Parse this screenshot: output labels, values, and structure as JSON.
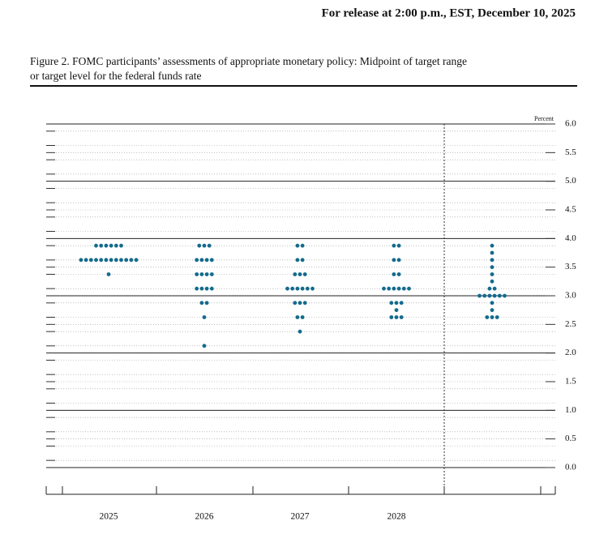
{
  "release": "For release at 2:00 p.m., EST, December 10, 2025",
  "chart_data": {
    "type": "dotplot",
    "title": [
      "Figure 2. FOMC participants’ assessments of appropriate monetary policy: Midpoint of target range",
      "or target level for the federal funds rate"
    ],
    "y_label": "Percent",
    "color": "#136b8c",
    "ylim": [
      0,
      6
    ],
    "yticks": [
      {
        "value": 0,
        "label": "0.0"
      },
      0.5,
      {
        "value": 1,
        "label": "1.0"
      },
      1.5,
      {
        "value": 2,
        "label": "2.0"
      },
      2.5,
      {
        "value": 3,
        "label": "3.0"
      },
      3.5,
      {
        "value": 4,
        "label": "4.0"
      },
      4.5,
      {
        "value": 5,
        "label": "5.0"
      },
      5.5,
      {
        "value": 6,
        "label": "6.0"
      }
    ],
    "categories": [
      "2025",
      "2026",
      "2027",
      "2028",
      null
    ],
    "points": [
      [
        {
          "value": 3.875,
          "count": 6
        },
        {
          "value": 3.625,
          "count": 12
        },
        {
          "value": 3.375,
          "count": 1
        }
      ],
      [
        {
          "value": 3.875,
          "count": 3
        },
        {
          "value": 3.625,
          "count": 4
        },
        {
          "value": 3.375,
          "count": 4
        },
        {
          "value": 3.125,
          "count": 4
        },
        {
          "value": 2.875,
          "count": 2
        },
        {
          "value": 2.625,
          "count": 1
        },
        {
          "value": 2.125,
          "count": 1
        }
      ],
      [
        {
          "value": 3.875,
          "count": 2
        },
        {
          "value": 3.625,
          "count": 2
        },
        {
          "value": 3.375,
          "count": 3
        },
        {
          "value": 3.125,
          "count": 6
        },
        {
          "value": 2.875,
          "count": 3
        },
        {
          "value": 2.625,
          "count": 2
        },
        {
          "value": 2.375,
          "count": 1
        }
      ],
      [
        {
          "value": 3.875,
          "count": 2
        },
        {
          "value": 3.625,
          "count": 2
        },
        {
          "value": 3.375,
          "count": 2
        },
        {
          "value": 3.125,
          "count": 6
        },
        {
          "value": 2.875,
          "count": 3
        },
        {
          "value": 2.75,
          "count": 1
        },
        {
          "value": 2.625,
          "count": 3
        }
      ],
      [
        {
          "value": 3.875,
          "count": 1
        },
        {
          "value": 3.75,
          "count": 1
        },
        {
          "value": 3.625,
          "count": 1
        },
        {
          "value": 3.5,
          "count": 1
        },
        {
          "value": 3.375,
          "count": 1
        },
        {
          "value": 3.25,
          "count": 1
        },
        {
          "value": 3.125,
          "count": 2
        },
        {
          "value": 3,
          "count": 6
        },
        {
          "value": 2.875,
          "count": 1
        },
        {
          "value": 2.75,
          "count": 1
        },
        {
          "value": 2.625,
          "count": 3
        }
      ]
    ]
  }
}
